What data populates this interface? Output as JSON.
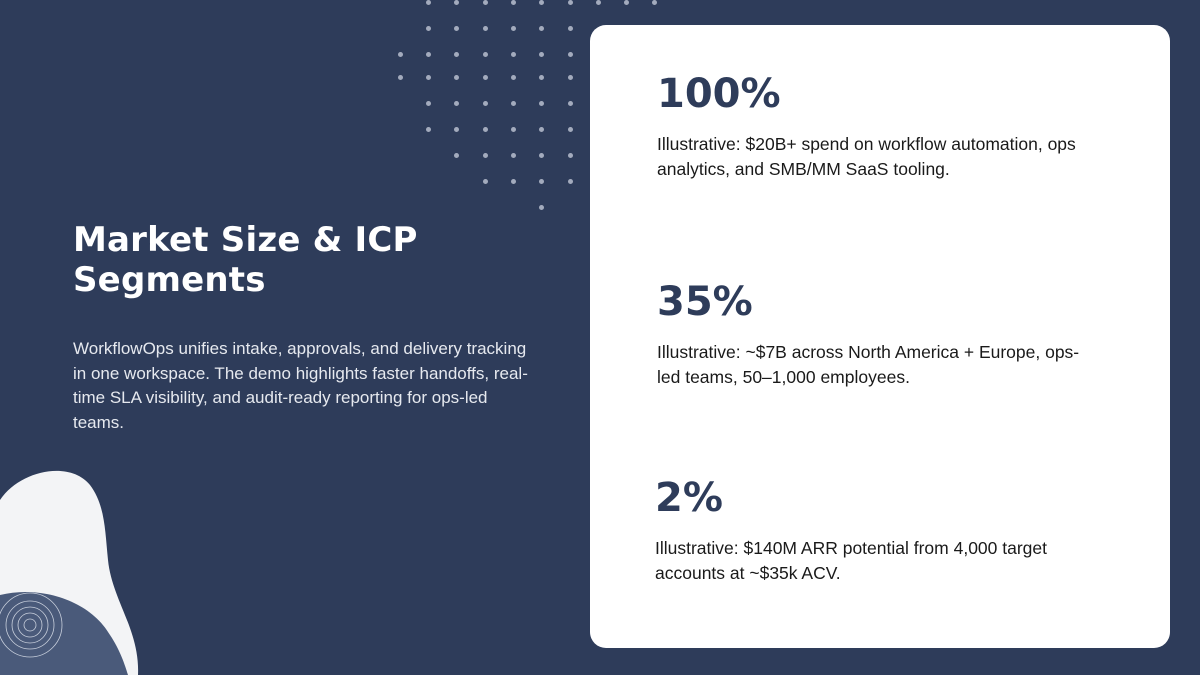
{
  "slide": {
    "title": "Market Size & ICP Segments",
    "description": "WorkflowOps unifies intake, approvals, and delivery tracking in one workspace. The demo highlights faster handoffs, real-time SLA visibility, and audit-ready reporting for ops-led teams."
  },
  "stats": [
    {
      "value": "100%",
      "text": "Illustrative: $20B+ spend on workflow automation, ops analytics, and SMB/MM SaaS tooling."
    },
    {
      "value": "35%",
      "text": "Illustrative: ~$7B across North America + Europe, ops-led teams, 50–1,000 employees."
    },
    {
      "value": "2%",
      "text": "Illustrative: $140M ARR potential from 4,000 target accounts at ~$35k ACV."
    }
  ],
  "colors": {
    "background": "#2e3c5a",
    "card": "#ffffff",
    "accent": "#2e3c5a"
  }
}
